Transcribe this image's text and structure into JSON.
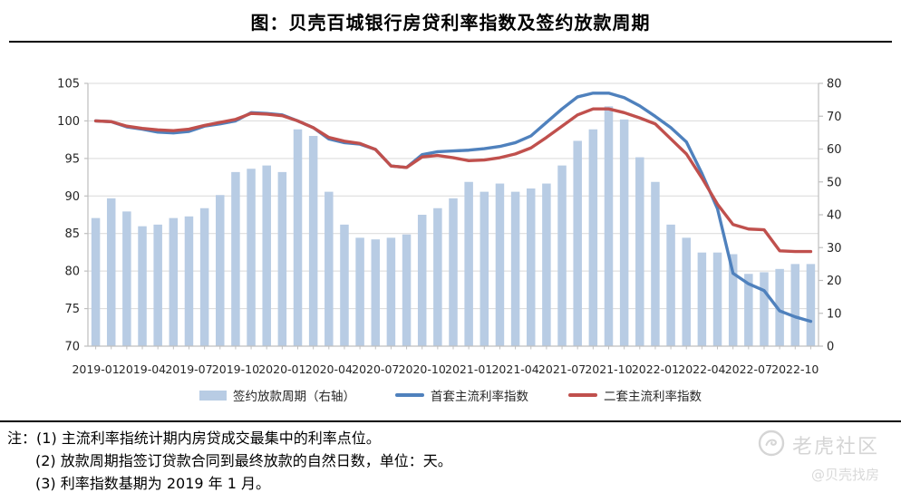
{
  "header": {
    "title": "图：贝壳百城银行房贷利率指数及签约放款周期"
  },
  "chart_data": {
    "type": "combo-bar-line",
    "title": "图：贝壳百城银行房贷利率指数及签约放款周期",
    "x": [
      "2019-01",
      "2019-02",
      "2019-03",
      "2019-04",
      "2019-05",
      "2019-06",
      "2019-07",
      "2019-08",
      "2019-09",
      "2019-10",
      "2019-11",
      "2019-12",
      "2020-01",
      "2020-02",
      "2020-03",
      "2020-04",
      "2020-05",
      "2020-06",
      "2020-07",
      "2020-08",
      "2020-09",
      "2020-10",
      "2020-11",
      "2020-12",
      "2021-01",
      "2021-02",
      "2021-03",
      "2021-04",
      "2021-05",
      "2021-06",
      "2021-07",
      "2021-08",
      "2021-09",
      "2021-10",
      "2021-11",
      "2021-12",
      "2022-01",
      "2022-02",
      "2022-03",
      "2022-04",
      "2022-05",
      "2022-06",
      "2022-07",
      "2022-08",
      "2022-09",
      "2022-10",
      "2022-11"
    ],
    "x_label_every": 3,
    "left_axis": {
      "min": 70,
      "max": 105,
      "step": 5
    },
    "right_axis": {
      "min": 0,
      "max": 80,
      "step": 10
    },
    "grid": true,
    "legend_position": "bottom",
    "series": [
      {
        "name": "签约放款周期（右轴）",
        "type": "bar",
        "axis": "right",
        "color": "#b8cce4",
        "values": [
          39,
          45,
          41,
          36.5,
          37,
          39,
          39.5,
          42,
          46,
          53,
          54,
          55,
          53,
          66,
          64,
          47,
          37,
          33,
          32.5,
          33,
          34,
          40,
          42,
          45,
          50,
          47,
          49.5,
          47,
          48,
          49.5,
          55,
          62.5,
          66,
          73,
          69,
          57.5,
          50,
          37,
          33,
          28.5,
          28.5,
          28,
          22,
          22.5,
          23.5,
          25,
          25
        ]
      },
      {
        "name": "首套主流利率指数",
        "type": "line",
        "axis": "left",
        "color": "#4f81bd",
        "values": [
          100,
          99.9,
          99.2,
          98.9,
          98.5,
          98.4,
          98.6,
          99.3,
          99.6,
          100,
          101.1,
          101,
          100.8,
          100,
          99.1,
          97.6,
          97.1,
          96.9,
          96.2,
          94,
          93.8,
          95.5,
          95.9,
          96,
          96.1,
          96.3,
          96.6,
          97.1,
          98,
          99.8,
          101.6,
          103.2,
          103.7,
          103.7,
          103.1,
          102,
          100.6,
          99.1,
          97.2,
          93,
          88.3,
          79.7,
          78.3,
          77.4,
          74.7,
          73.9,
          73.3
        ]
      },
      {
        "name": "二套主流利率指数",
        "type": "line",
        "axis": "left",
        "color": "#c0504d",
        "values": [
          100,
          99.9,
          99.3,
          99,
          98.8,
          98.7,
          98.9,
          99.4,
          99.8,
          100.2,
          101,
          100.9,
          100.7,
          100,
          99.1,
          97.8,
          97.3,
          97,
          96.2,
          94,
          93.8,
          95.2,
          95.4,
          95.1,
          94.7,
          94.8,
          95.1,
          95.6,
          96.4,
          97.8,
          99.3,
          100.8,
          101.6,
          101.6,
          101.1,
          100.4,
          99.6,
          97.6,
          95.6,
          92.4,
          88.9,
          86.2,
          85.6,
          85.5,
          82.7,
          82.6,
          82.6
        ]
      }
    ]
  },
  "notes": {
    "prefix": "注：",
    "items": [
      "(1) 主流利率指统计期内房贷成交最集中的利率点位。",
      "(2) 放款周期指签订贷款合同到最终放款的自然日数，单位：天。",
      "(3) 利率指数基期为 2019 年 1 月。"
    ]
  },
  "watermark": {
    "name": "老虎社区",
    "handle": "@贝壳找房"
  },
  "colors": {
    "bar": "#b8cce4",
    "line_first": "#4f81bd",
    "line_second": "#c0504d",
    "grid": "#d9d9d9",
    "axis": "#bfbfbf",
    "text": "#262626",
    "rule": "#000000",
    "watermark": "#d5d5d5"
  }
}
